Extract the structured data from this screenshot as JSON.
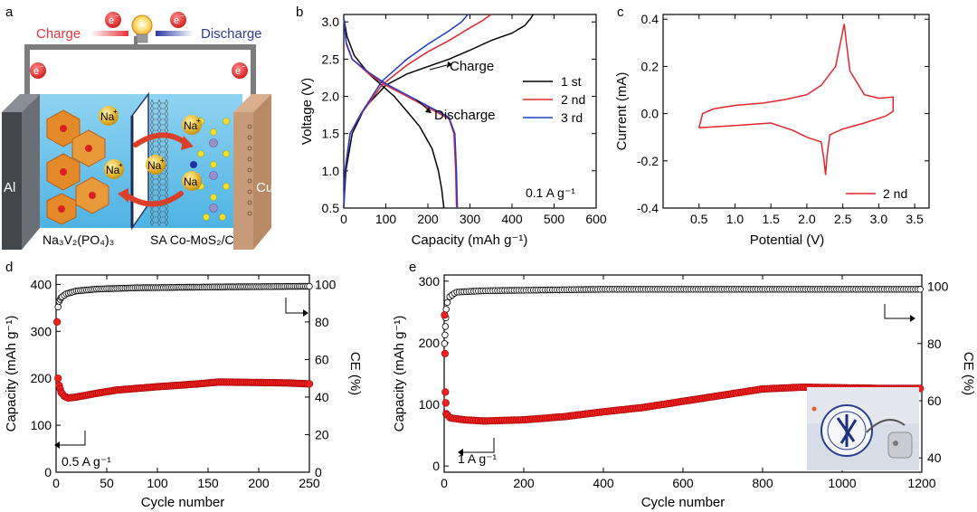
{
  "panels": {
    "a": {
      "letter": "a",
      "charge": "Charge",
      "discharge": "Discharge",
      "electron": "e",
      "electron_sup": "−",
      "al": "Al",
      "cu": "Cu",
      "na": "Na",
      "na_sup": "+",
      "cathode_label": "Na₃V₂(PO₄)₃",
      "anode_label": "SA Co-MoS₂/C",
      "colors": {
        "charge": "#e8333a",
        "discharge": "#2a3aa0",
        "electrolyte": "#6ec3ea",
        "al": "#555a60",
        "cu": "#c79a7a"
      }
    },
    "b": {
      "letter": "b",
      "note": "0.1 A g⁻¹",
      "charge_note": "Charge",
      "discharge_note": "Discharge"
    },
    "c": {
      "letter": "c"
    },
    "d": {
      "letter": "d",
      "rate": "0.5 A g⁻¹"
    },
    "e": {
      "letter": "e",
      "rate": "1 A g⁻¹",
      "photo": "photo-of-coin-cell-and-seal"
    }
  },
  "chart_data": [
    {
      "id": "b",
      "type": "line",
      "xlabel": "Capacity (mAh g⁻¹)",
      "ylabel": "Voltage (V)",
      "xlim": [
        0,
        600
      ],
      "ylim": [
        0.5,
        3.1
      ],
      "xticks": [
        0,
        100,
        200,
        300,
        400,
        500,
        600
      ],
      "yticks": [
        0.5,
        1.0,
        1.5,
        2.0,
        2.5,
        3.0
      ],
      "legend": "right",
      "series": [
        {
          "name": "1 st",
          "color": "#000000",
          "discharge": [
            [
              0,
              3.05
            ],
            [
              8,
              2.8
            ],
            [
              25,
              2.55
            ],
            [
              60,
              2.3
            ],
            [
              90,
              2.15
            ],
            [
              120,
              2.0
            ],
            [
              150,
              1.8
            ],
            [
              180,
              1.6
            ],
            [
              210,
              1.3
            ],
            [
              225,
              1.0
            ],
            [
              233,
              0.75
            ],
            [
              238,
              0.5
            ]
          ],
          "charge": [
            [
              0,
              0.5
            ],
            [
              5,
              1.0
            ],
            [
              20,
              1.5
            ],
            [
              50,
              1.85
            ],
            [
              100,
              2.15
            ],
            [
              150,
              2.3
            ],
            [
              200,
              2.4
            ],
            [
              250,
              2.5
            ],
            [
              300,
              2.62
            ],
            [
              350,
              2.75
            ],
            [
              400,
              2.85
            ],
            [
              430,
              2.95
            ],
            [
              445,
              3.05
            ],
            [
              450,
              3.1
            ]
          ]
        },
        {
          "name": "2 nd",
          "color": "#e3262c",
          "discharge": [
            [
              0,
              3.05
            ],
            [
              6,
              2.7
            ],
            [
              20,
              2.5
            ],
            [
              60,
              2.3
            ],
            [
              100,
              2.15
            ],
            [
              150,
              2.0
            ],
            [
              200,
              1.85
            ],
            [
              250,
              1.7
            ],
            [
              262,
              1.5
            ],
            [
              266,
              1.0
            ],
            [
              268,
              0.5
            ]
          ],
          "charge": [
            [
              0,
              0.5
            ],
            [
              3,
              1.0
            ],
            [
              15,
              1.5
            ],
            [
              40,
              1.75
            ],
            [
              90,
              2.15
            ],
            [
              150,
              2.42
            ],
            [
              200,
              2.6
            ],
            [
              250,
              2.75
            ],
            [
              300,
              2.92
            ],
            [
              330,
              3.02
            ],
            [
              350,
              3.1
            ]
          ]
        },
        {
          "name": "3 rd",
          "color": "#1f3bd0",
          "discharge": [
            [
              0,
              3.05
            ],
            [
              6,
              2.72
            ],
            [
              20,
              2.5
            ],
            [
              60,
              2.32
            ],
            [
              100,
              2.17
            ],
            [
              150,
              2.02
            ],
            [
              200,
              1.87
            ],
            [
              250,
              1.72
            ],
            [
              264,
              1.5
            ],
            [
              268,
              1.0
            ],
            [
              270,
              0.5
            ]
          ],
          "charge": [
            [
              0,
              0.5
            ],
            [
              3,
              1.0
            ],
            [
              15,
              1.5
            ],
            [
              40,
              1.76
            ],
            [
              90,
              2.2
            ],
            [
              150,
              2.5
            ],
            [
              200,
              2.7
            ],
            [
              250,
              2.88
            ],
            [
              280,
              3.0
            ],
            [
              295,
              3.1
            ]
          ]
        }
      ]
    },
    {
      "id": "c",
      "type": "line",
      "xlabel": "Potential (V)",
      "ylabel": "Current (mA)",
      "xlim": [
        0.0,
        3.7
      ],
      "ylim": [
        -0.4,
        0.42
      ],
      "xticks": [
        0.5,
        1.0,
        1.5,
        2.0,
        2.5,
        3.0,
        3.5
      ],
      "yticks": [
        -0.4,
        -0.2,
        0.0,
        0.2,
        0.4
      ],
      "legend": "bottom-right",
      "series": [
        {
          "name": "2 nd",
          "color": "#e3262c",
          "points": [
            [
              0.5,
              -0.06
            ],
            [
              1.0,
              -0.05
            ],
            [
              1.5,
              -0.04
            ],
            [
              1.8,
              -0.07
            ],
            [
              2.0,
              -0.1
            ],
            [
              2.1,
              -0.11
            ],
            [
              2.2,
              -0.12
            ],
            [
              2.24,
              -0.2
            ],
            [
              2.26,
              -0.26
            ],
            [
              2.28,
              -0.18
            ],
            [
              2.32,
              -0.09
            ],
            [
              2.5,
              -0.065
            ],
            [
              2.8,
              -0.04
            ],
            [
              3.1,
              -0.01
            ],
            [
              3.2,
              0.01
            ],
            [
              3.2,
              0.07
            ],
            [
              3.0,
              0.065
            ],
            [
              2.8,
              0.08
            ],
            [
              2.6,
              0.18
            ],
            [
              2.55,
              0.3
            ],
            [
              2.52,
              0.38
            ],
            [
              2.48,
              0.32
            ],
            [
              2.4,
              0.2
            ],
            [
              2.2,
              0.12
            ],
            [
              2.0,
              0.08
            ],
            [
              1.7,
              0.06
            ],
            [
              1.4,
              0.045
            ],
            [
              1.0,
              0.035
            ],
            [
              0.7,
              0.02
            ],
            [
              0.55,
              0.0
            ],
            [
              0.5,
              -0.06
            ]
          ]
        }
      ]
    },
    {
      "id": "d",
      "type": "scatter",
      "xlabel": "Cycle number",
      "ylabel": "Capacity (mAh g⁻¹)",
      "y2label": "CE (%)",
      "xlim": [
        0,
        250
      ],
      "ylim": [
        0,
        420
      ],
      "y2lim": [
        0,
        105
      ],
      "xticks": [
        0,
        50,
        100,
        150,
        200,
        250
      ],
      "yticks": [
        0,
        100,
        200,
        300,
        400
      ],
      "y2ticks": [
        0,
        20,
        40,
        60,
        80,
        100
      ],
      "capacity_curve": [
        [
          1,
          320
        ],
        [
          2,
          200
        ],
        [
          3,
          185
        ],
        [
          5,
          170
        ],
        [
          8,
          162
        ],
        [
          12,
          158
        ],
        [
          20,
          160
        ],
        [
          40,
          168
        ],
        [
          60,
          175
        ],
        [
          100,
          182
        ],
        [
          140,
          188
        ],
        [
          160,
          192
        ],
        [
          200,
          191
        ],
        [
          230,
          190
        ],
        [
          250,
          188
        ]
      ],
      "ce_curve": [
        [
          1,
          80
        ],
        [
          2,
          88
        ],
        [
          3,
          91
        ],
        [
          5,
          93
        ],
        [
          10,
          95
        ],
        [
          20,
          96.5
        ],
        [
          40,
          97.5
        ],
        [
          80,
          98.2
        ],
        [
          150,
          98.6
        ],
        [
          250,
          99
        ]
      ]
    },
    {
      "id": "e",
      "type": "scatter",
      "xlabel": "Cycle number",
      "ylabel": "Capacity (mAh g⁻¹)",
      "y2label": "CE (%)",
      "xlim": [
        0,
        1200
      ],
      "ylim": [
        -10,
        310
      ],
      "y2lim": [
        35,
        104
      ],
      "xticks": [
        0,
        200,
        400,
        600,
        800,
        1000,
        1200
      ],
      "yticks": [
        0,
        100,
        200,
        300
      ],
      "y2ticks": [
        40,
        60,
        80,
        100
      ],
      "capacity_curve": [
        [
          1,
          245
        ],
        [
          3,
          120
        ],
        [
          5,
          85
        ],
        [
          15,
          78
        ],
        [
          50,
          75
        ],
        [
          100,
          73
        ],
        [
          200,
          75
        ],
        [
          300,
          80
        ],
        [
          400,
          88
        ],
        [
          500,
          95
        ],
        [
          600,
          105
        ],
        [
          700,
          115
        ],
        [
          800,
          125
        ],
        [
          900,
          128
        ],
        [
          1000,
          127
        ],
        [
          1100,
          126
        ],
        [
          1200,
          126
        ]
      ],
      "ce_curve": [
        [
          1,
          80
        ],
        [
          3,
          86
        ],
        [
          5,
          92
        ],
        [
          10,
          96
        ],
        [
          30,
          98
        ],
        [
          100,
          98.5
        ],
        [
          400,
          99
        ],
        [
          800,
          99
        ],
        [
          1200,
          99
        ]
      ]
    }
  ]
}
